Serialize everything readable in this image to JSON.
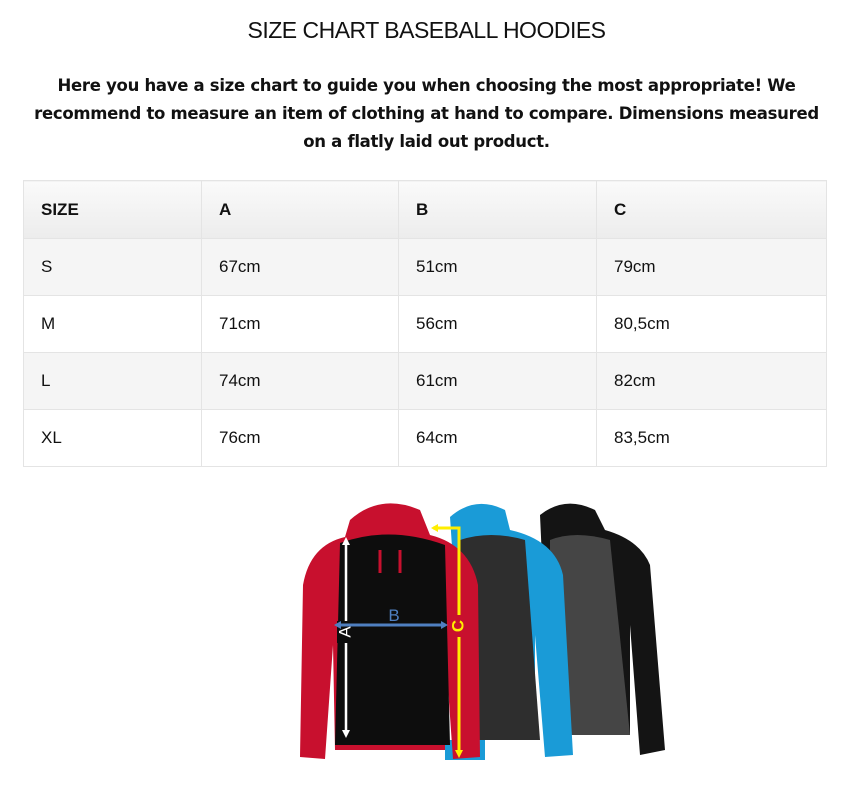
{
  "title": "SIZE CHART BASEBALL HOODIES",
  "intro": "Here you have a size chart to guide you when choosing the most appropriate! We recommend to measure an item of clothing at hand to compare. Dimensions measured on a flatly laid out product.",
  "table": {
    "headers": [
      "SIZE",
      "A",
      "B",
      "C"
    ],
    "rows": [
      [
        "S",
        "67cm",
        "51cm",
        "79cm"
      ],
      [
        "M",
        "71cm",
        "56cm",
        "80,5cm"
      ],
      [
        "L",
        "74cm",
        "61cm",
        "82cm"
      ],
      [
        "XL",
        "76cm",
        "64cm",
        "83,5cm"
      ]
    ]
  },
  "image": {
    "labels": {
      "a": "A",
      "b": "B",
      "c": "C"
    },
    "colors": {
      "red": "#c8102e",
      "blue": "#1a9bd7",
      "charcoal": "#3a3a3a",
      "black": "#141414",
      "arrow_a": "#ffffff",
      "arrow_b": "#4f7fc0",
      "arrow_c": "#ffee00"
    }
  }
}
